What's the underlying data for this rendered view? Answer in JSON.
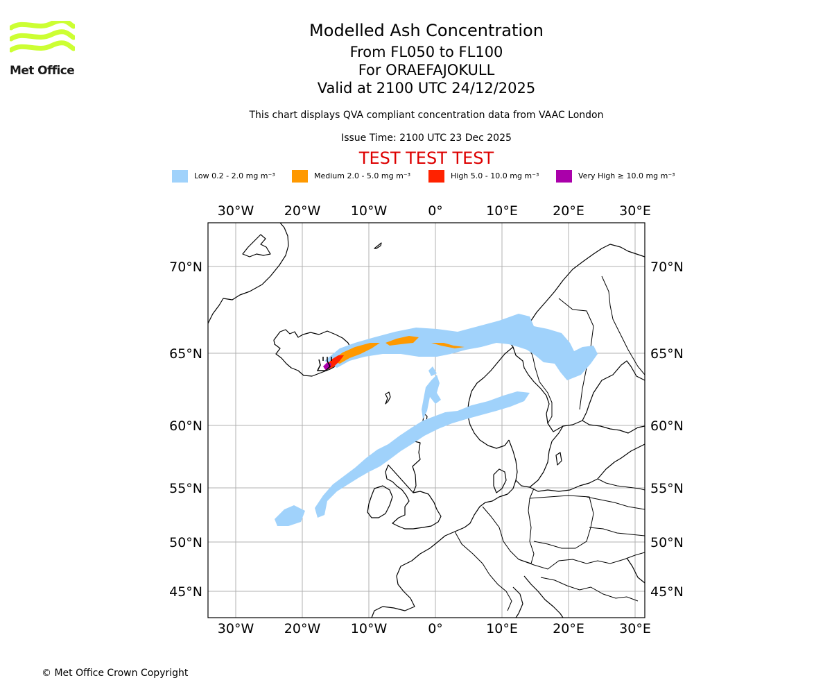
{
  "logo": {
    "text": "Met Office",
    "wave_color": "#ccff33",
    "icon": "met-office-waves-logo"
  },
  "titles": {
    "line1": "Modelled Ash Concentration",
    "line2": "From FL050 to FL100",
    "line3": "For ORAEFAJOKULL",
    "line4": "Valid at 2100 UTC 24/12/2025"
  },
  "subtitle": "This chart displays QVA compliant concentration data from VAAC London",
  "issue_time": "Issue Time: 2100 UTC 23 Dec 2025",
  "test_banner": "TEST TEST TEST",
  "test_color": "#dd0000",
  "legend": [
    {
      "label": "Low 0.2 - 2.0 mg m⁻³",
      "color": "#a0d2fb"
    },
    {
      "label": "Medium 2.0 - 5.0 mg m⁻³",
      "color": "#ff9900"
    },
    {
      "label": "High 5.0 - 10.0 mg m⁻³",
      "color": "#ff2200"
    },
    {
      "label": "Very High ≥ 10.0 mg m⁻³",
      "color": "#aa00aa"
    }
  ],
  "map": {
    "projection": "stereographic",
    "lon_ticks": [
      "30°W",
      "20°W",
      "10°W",
      "0°",
      "10°E",
      "20°E",
      "30°E"
    ],
    "lat_ticks": [
      "70°N",
      "65°N",
      "60°N",
      "55°N",
      "50°N",
      "45°N"
    ],
    "lon_values": [
      -30,
      -20,
      -10,
      0,
      10,
      20,
      30
    ],
    "lat_values": [
      70,
      65,
      60,
      55,
      50,
      45
    ],
    "extent": {
      "lon": [
        -34,
        32
      ],
      "lat": [
        43,
        72.5
      ]
    },
    "source_volcano": "ORAEFAJOKULL",
    "source_location": {
      "lat": 64.0,
      "lon": -16.65
    },
    "gridlines": true,
    "gridline_color": "#b0b0b0",
    "coastline_color": "#000000"
  },
  "copyright": "© Met Office Crown Copyright"
}
